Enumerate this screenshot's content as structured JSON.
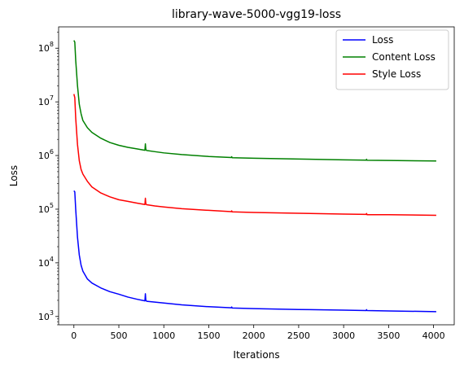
{
  "chart_data": {
    "type": "line",
    "title": "library-wave-5000-vgg19-loss",
    "xlabel": "Iterations",
    "ylabel": "Loss",
    "xlim": [
      -170,
      4230
    ],
    "ylim": [
      700,
      250000000
    ],
    "yscale": "log",
    "x_ticks": [
      0,
      500,
      1000,
      1500,
      2000,
      2500,
      3000,
      3500,
      4000
    ],
    "x_tick_labels": [
      "0",
      "500",
      "1000",
      "1500",
      "2000",
      "2500",
      "3000",
      "3500",
      "4000"
    ],
    "y_ticks": [
      1000,
      10000,
      100000,
      1000000,
      10000000,
      100000000
    ],
    "y_tick_labels": [
      {
        "base": "10",
        "exp": "3"
      },
      {
        "base": "10",
        "exp": "4"
      },
      {
        "base": "10",
        "exp": "5"
      },
      {
        "base": "10",
        "exp": "6"
      },
      {
        "base": "10",
        "exp": "7"
      },
      {
        "base": "10",
        "exp": "8"
      }
    ],
    "legend_position": "top-right",
    "grid": false,
    "series": [
      {
        "name": "Loss",
        "color": "#0000ff",
        "x": [
          0,
          10,
          20,
          40,
          60,
          80,
          100,
          150,
          200,
          300,
          400,
          500,
          600,
          700,
          790,
          795,
          800,
          805,
          810,
          900,
          1000,
          1200,
          1500,
          1750,
          1755,
          1760,
          2000,
          2500,
          3000,
          3250,
          3255,
          3260,
          3500,
          4030
        ],
        "y": [
          220000,
          210000,
          100000,
          30000,
          14000,
          9000,
          7000,
          5000,
          4200,
          3400,
          2900,
          2600,
          2300,
          2100,
          1950,
          2650,
          2000,
          1960,
          1920,
          1850,
          1780,
          1650,
          1520,
          1450,
          1500,
          1440,
          1400,
          1350,
          1310,
          1290,
          1340,
          1290,
          1270,
          1230
        ]
      },
      {
        "name": "Content Loss",
        "color": "#008000",
        "x": [
          0,
          10,
          20,
          40,
          60,
          80,
          100,
          150,
          200,
          300,
          400,
          500,
          600,
          700,
          790,
          795,
          800,
          805,
          810,
          900,
          1000,
          1200,
          1500,
          1750,
          1755,
          1760,
          2000,
          2500,
          3000,
          3250,
          3255,
          3260,
          3500,
          4030
        ],
        "y": [
          140000000,
          130000000,
          60000000,
          20000000,
          9000000,
          6000000,
          4500000,
          3300000,
          2700000,
          2100000,
          1750000,
          1550000,
          1420000,
          1330000,
          1250000,
          1650000,
          1300000,
          1260000,
          1240000,
          1180000,
          1120000,
          1040000,
          960000,
          920000,
          950000,
          910000,
          890000,
          860000,
          830000,
          820000,
          850000,
          815000,
          810000,
          790000
        ]
      },
      {
        "name": "Style Loss",
        "color": "#ff0000",
        "x": [
          0,
          10,
          20,
          40,
          60,
          80,
          100,
          150,
          200,
          300,
          400,
          500,
          600,
          700,
          790,
          795,
          800,
          805,
          810,
          900,
          1000,
          1200,
          1500,
          1750,
          1755,
          1760,
          2000,
          2500,
          3000,
          3250,
          3255,
          3260,
          3500,
          4030
        ],
        "y": [
          14000000,
          12000000,
          5000000,
          1600000,
          800000,
          550000,
          450000,
          330000,
          260000,
          200000,
          170000,
          150000,
          140000,
          130000,
          122000,
          160000,
          126000,
          123000,
          121000,
          115000,
          110000,
          102000,
          95000,
          90000,
          93000,
          89000,
          87000,
          84000,
          81000,
          80000,
          83000,
          79000,
          79000,
          77000
        ]
      }
    ]
  }
}
